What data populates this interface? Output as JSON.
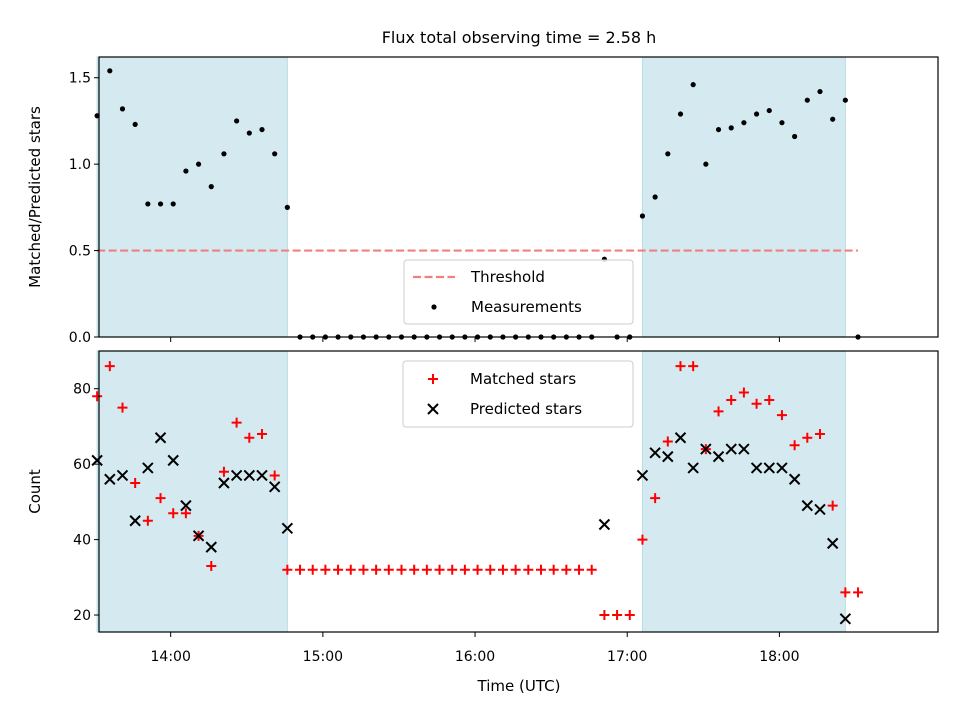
{
  "title": "Flux total observing time = 2.58 h",
  "chart_data": [
    {
      "type": "scatter",
      "ylabel": "Matched/Predicted stars",
      "ylim": [
        0,
        1.62
      ],
      "yticks": [
        0.0,
        0.5,
        1.0,
        1.5
      ],
      "ytick_labels": [
        "0.0",
        "0.5",
        "1.0",
        "1.5"
      ],
      "xticks": [
        "14:00",
        "15:00",
        "16:00",
        "17:00",
        "18:00"
      ],
      "grid": false,
      "legend_position": "lower center",
      "legend": [
        "Threshold",
        "Measurements"
      ],
      "threshold": {
        "name": "Threshold",
        "y": 0.5,
        "x_range": [
          "13:31",
          "18:31"
        ],
        "color": "#f08080"
      },
      "series": [
        {
          "name": "Measurements",
          "color": "#000000",
          "x": [
            "13:31",
            "13:36",
            "13:41",
            "13:46",
            "13:51",
            "13:56",
            "14:01",
            "14:06",
            "14:11",
            "14:16",
            "14:21",
            "14:26",
            "14:31",
            "14:36",
            "14:41",
            "14:46",
            "14:51",
            "14:56",
            "15:01",
            "15:06",
            "15:11",
            "15:16",
            "15:21",
            "15:26",
            "15:31",
            "15:36",
            "15:41",
            "15:46",
            "15:51",
            "15:56",
            "16:01",
            "16:06",
            "16:11",
            "16:16",
            "16:21",
            "16:26",
            "16:31",
            "16:36",
            "16:41",
            "16:46",
            "16:51",
            "16:56",
            "17:01",
            "17:06",
            "17:11",
            "17:16",
            "17:21",
            "17:26",
            "17:31",
            "17:36",
            "17:41",
            "17:46",
            "17:51",
            "17:56",
            "18:01",
            "18:06",
            "18:11",
            "18:16",
            "18:21",
            "18:26",
            "18:31"
          ],
          "y": [
            1.28,
            1.54,
            1.32,
            1.23,
            0.77,
            0.77,
            0.77,
            0.96,
            1.0,
            0.87,
            1.06,
            1.25,
            1.18,
            1.2,
            1.06,
            0.75,
            0,
            0,
            0,
            0,
            0,
            0,
            0,
            0,
            0,
            0,
            0,
            0,
            0,
            0,
            0,
            0,
            0,
            0,
            0,
            0,
            0,
            0,
            0,
            0,
            0.45,
            0,
            0,
            0.7,
            0.81,
            1.06,
            1.29,
            1.46,
            1.0,
            1.2,
            1.21,
            1.24,
            1.29,
            1.31,
            1.24,
            1.16,
            1.37,
            1.42,
            1.26,
            1.37,
            0
          ]
        }
      ],
      "observing_periods": [
        [
          "13:31",
          "14:46"
        ],
        [
          "17:06",
          "18:26"
        ]
      ],
      "observing_color": "#d4eaf0"
    },
    {
      "type": "scatter",
      "xlabel": "Time (UTC)",
      "ylabel": "Count",
      "ylim": [
        15.5,
        90
      ],
      "yticks": [
        20,
        40,
        60,
        80
      ],
      "ytick_labels": [
        "20",
        "40",
        "60",
        "80"
      ],
      "xticks": [
        "14:00",
        "15:00",
        "16:00",
        "17:00",
        "18:00"
      ],
      "grid": false,
      "legend_position": "upper center",
      "legend": [
        "Matched stars",
        "Predicted stars"
      ],
      "series": [
        {
          "name": "Matched stars",
          "color": "#ff0000",
          "marker": "plus",
          "x": [
            "13:31",
            "13:36",
            "13:41",
            "13:46",
            "13:51",
            "13:56",
            "14:01",
            "14:06",
            "14:11",
            "14:16",
            "14:21",
            "14:26",
            "14:31",
            "14:36",
            "14:41",
            "14:46",
            "14:51",
            "14:56",
            "15:01",
            "15:06",
            "15:11",
            "15:16",
            "15:21",
            "15:26",
            "15:31",
            "15:36",
            "15:41",
            "15:46",
            "15:51",
            "15:56",
            "16:01",
            "16:06",
            "16:11",
            "16:16",
            "16:21",
            "16:26",
            "16:31",
            "16:36",
            "16:41",
            "16:46",
            "16:51",
            "16:56",
            "17:01",
            "17:06",
            "17:11",
            "17:16",
            "17:21",
            "17:26",
            "17:31",
            "17:36",
            "17:41",
            "17:46",
            "17:51",
            "17:56",
            "18:01",
            "18:06",
            "18:11",
            "18:16",
            "18:21",
            "18:26",
            "18:31"
          ],
          "y": [
            78,
            86,
            75,
            55,
            45,
            51,
            47,
            47,
            41,
            33,
            58,
            71,
            67,
            68,
            57,
            32,
            32,
            32,
            32,
            32,
            32,
            32,
            32,
            32,
            32,
            32,
            32,
            32,
            32,
            32,
            32,
            32,
            32,
            32,
            32,
            32,
            32,
            32,
            32,
            32,
            20,
            20,
            20,
            40,
            51,
            66,
            86,
            86,
            64,
            74,
            77,
            79,
            76,
            77,
            73,
            65,
            67,
            68,
            49,
            26,
            26
          ]
        },
        {
          "name": "Predicted stars",
          "color": "#000000",
          "marker": "x",
          "x": [
            "13:31",
            "13:36",
            "13:41",
            "13:46",
            "13:51",
            "13:56",
            "14:01",
            "14:06",
            "14:11",
            "14:16",
            "14:21",
            "14:26",
            "14:31",
            "14:36",
            "14:41",
            "14:46",
            "16:51",
            "17:06",
            "17:11",
            "17:16",
            "17:21",
            "17:26",
            "17:31",
            "17:36",
            "17:41",
            "17:46",
            "17:51",
            "17:56",
            "18:01",
            "18:06",
            "18:11",
            "18:16",
            "18:21",
            "18:26"
          ],
          "y": [
            61,
            56,
            57,
            45,
            59,
            67,
            61,
            49,
            41,
            38,
            55,
            57,
            57,
            57,
            54,
            43,
            44,
            57,
            63,
            62,
            67,
            59,
            64,
            62,
            64,
            64,
            59,
            59,
            59,
            56,
            49,
            48,
            39,
            19
          ]
        }
      ],
      "observing_periods": [
        [
          "13:31",
          "14:46"
        ],
        [
          "17:06",
          "18:26"
        ]
      ],
      "observing_color": "#d4eaf0"
    }
  ]
}
